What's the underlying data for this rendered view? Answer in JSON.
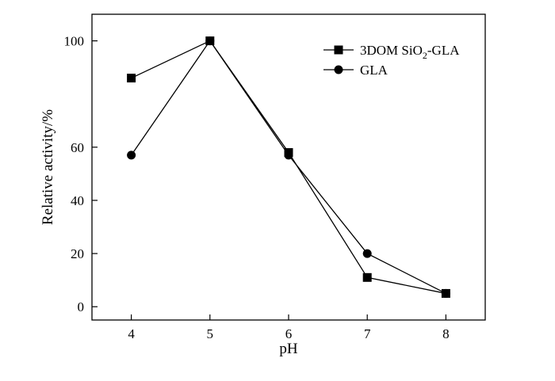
{
  "chart_data": {
    "type": "line",
    "title": "",
    "xlabel": "pH",
    "ylabel": "Relative activity/%",
    "x": [
      4,
      5,
      6,
      7,
      8
    ],
    "xlim": [
      3.5,
      8.5
    ],
    "ylim": [
      -5,
      110
    ],
    "xticks": [
      4,
      5,
      6,
      7,
      8
    ],
    "yticks": [
      0,
      20,
      40,
      60,
      100
    ],
    "grid": false,
    "legend_position": "top-right",
    "series": [
      {
        "name": "3DOM SiO2-GLA",
        "name_main": "3DOM SiO",
        "name_sub": "2",
        "name_tail": "-GLA",
        "marker": "square",
        "values": [
          86,
          100,
          58,
          11,
          5
        ]
      },
      {
        "name": "GLA",
        "marker": "circle",
        "values": [
          57,
          100,
          57,
          20,
          5
        ]
      }
    ]
  }
}
